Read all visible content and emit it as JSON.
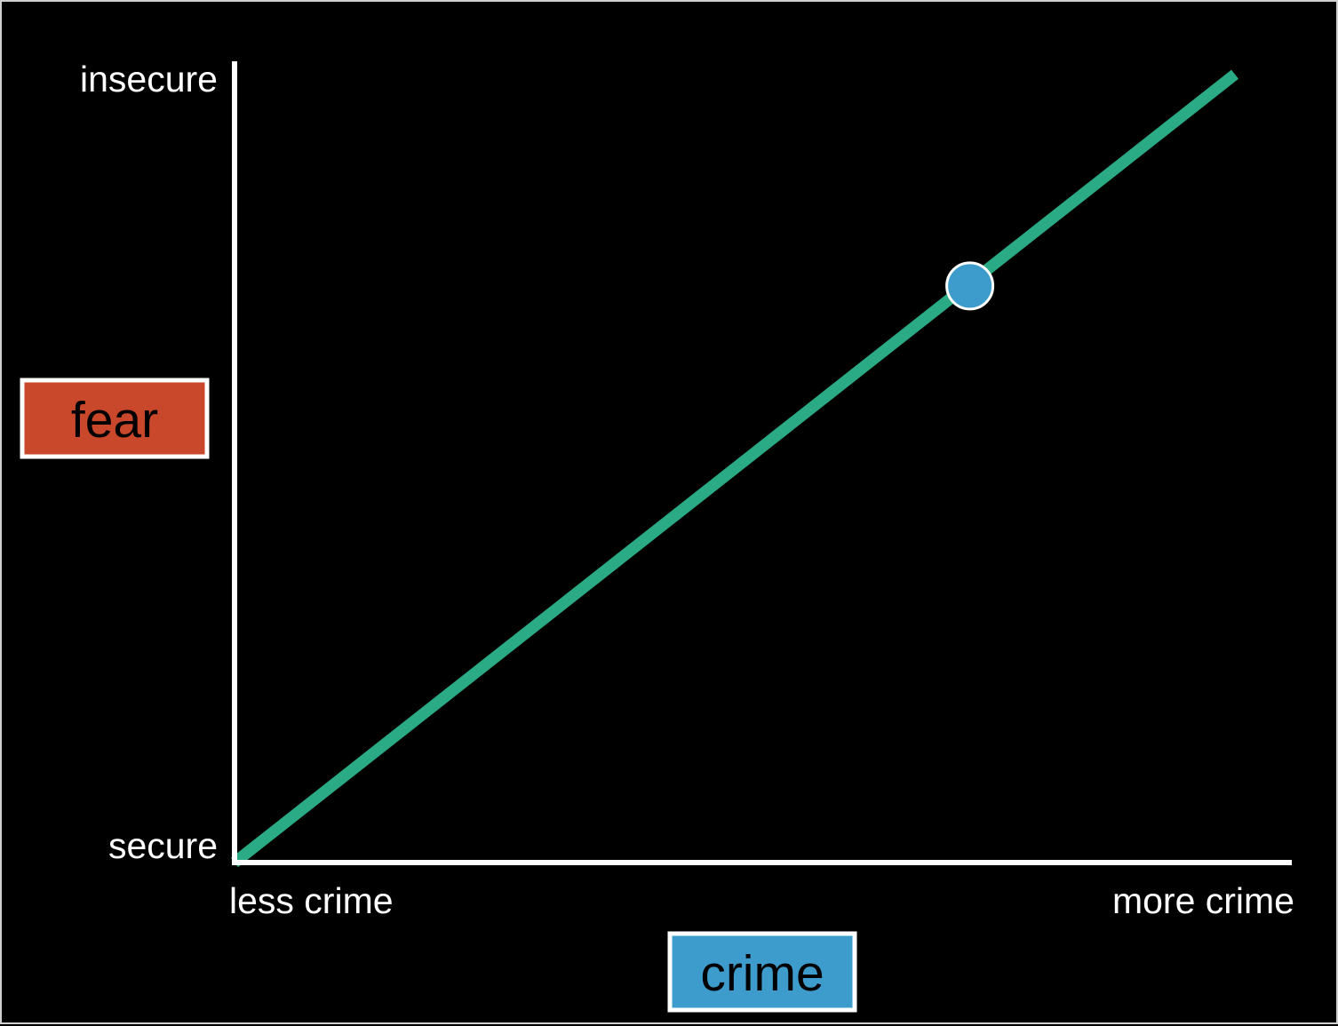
{
  "chart_data": {
    "type": "line",
    "ylabel": "fear",
    "xlabel": "crime",
    "x_axis": {
      "low_label": "less crime",
      "high_label": "more crime"
    },
    "y_axis": {
      "low_label": "secure",
      "high_label": "insecure"
    },
    "xlim": [
      0,
      1
    ],
    "ylim": [
      0,
      1
    ],
    "grid": false,
    "series": [
      {
        "x": [
          0,
          1
        ],
        "y": [
          0,
          0.95
        ]
      }
    ],
    "highlight_point": {
      "x": 0.735,
      "y": 0.695
    },
    "colors": {
      "line": "#2bab85",
      "point": "#3e9ccc",
      "point_outline": "#ffffff",
      "axis": "#ffffff",
      "ylabel_box": "#c9472b",
      "xlabel_box": "#3e9ccc",
      "background": "#000000"
    }
  }
}
